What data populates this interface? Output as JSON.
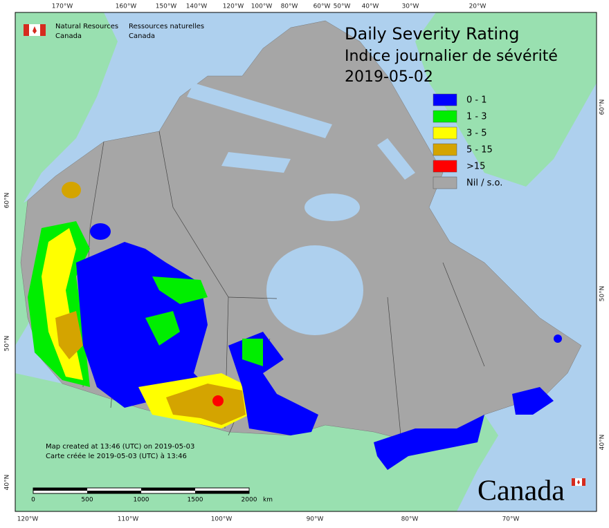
{
  "header": {
    "agency_en": [
      "Natural Resources",
      "Canada"
    ],
    "agency_fr": [
      "Ressources naturelles",
      "Canada"
    ]
  },
  "title": {
    "en": "Daily Severity Rating",
    "fr": "Indice journalier de sévérité",
    "date": "2019-05-02"
  },
  "legend": [
    {
      "label": "0 - 1",
      "color": "#0000ff"
    },
    {
      "label": "1 - 3",
      "color": "#00ee00"
    },
    {
      "label": "3 - 5",
      "color": "#ffff00"
    },
    {
      "label": "5 - 15",
      "color": "#d4a400"
    },
    {
      "label": ">15",
      "color": "#ff0000"
    },
    {
      "label": "Nil / s.o.",
      "color": "#a6a6a6"
    }
  ],
  "graticule": {
    "top": [
      "170°W",
      "160°W",
      "150°W",
      "140°W",
      "120°W",
      "100°W",
      "80°W",
      "60°W",
      "50°W",
      "40°W",
      "30°W",
      "20°W"
    ],
    "bottom": [
      "120°W",
      "110°W",
      "100°W",
      "90°W",
      "80°W",
      "70°W"
    ],
    "left": [
      "60°N",
      "50°N",
      "40°N"
    ],
    "right": [
      "60°N",
      "50°N",
      "40°N"
    ]
  },
  "notes": [
    "Map created at 13:46 (UTC) on 2019-05-03",
    "Carte créée le 2019-05-03 (UTC) à 13:46"
  ],
  "scale_bar": {
    "labels": [
      "0",
      "500",
      "1000",
      "1500",
      "2000"
    ],
    "unit": "km"
  },
  "wordmark": "Canada"
}
